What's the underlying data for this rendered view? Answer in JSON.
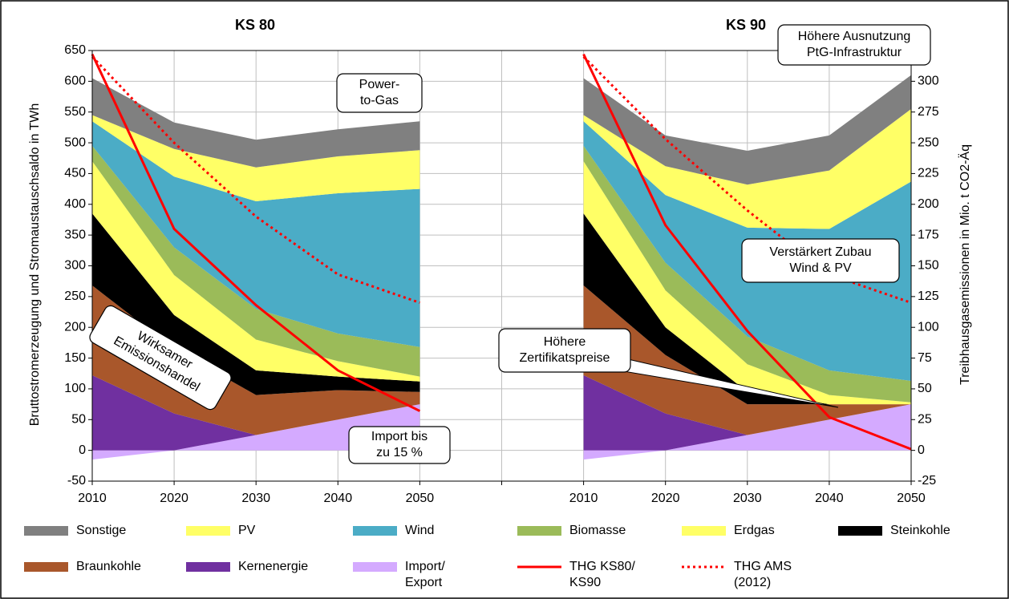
{
  "chart_data": {
    "type": "stacked_area",
    "titles": [
      "KS 80",
      "KS 90"
    ],
    "y_label": "Bruttostromerzeugung und Stromaustauschsaldo in TWh",
    "y2_label": "Treibhausgasemissionen in Mio. t CO2-Äq",
    "categories": [
      "2010",
      "2020",
      "2030",
      "2040",
      "2050",
      null,
      "2010",
      "2020",
      "2030",
      "2040",
      "2050"
    ],
    "ylim": [
      -50,
      650
    ],
    "yticks": [
      -50,
      0,
      50,
      100,
      150,
      200,
      250,
      300,
      350,
      400,
      450,
      500,
      550,
      600,
      650
    ],
    "y2lim": [
      -25,
      325
    ],
    "y2ticks": [
      -25,
      0,
      25,
      50,
      75,
      100,
      125,
      150,
      175,
      200,
      225,
      250,
      275,
      300
    ],
    "grid": true,
    "legend": "bottom",
    "series": [
      {
        "name": "Sonstige",
        "color": "#808080",
        "values": [
          60,
          43,
          45,
          44,
          47,
          null,
          60,
          50,
          55,
          57,
          55
        ]
      },
      {
        "name": "PV",
        "color": "#ffff66",
        "values": [
          10,
          45,
          55,
          60,
          63,
          null,
          10,
          47,
          70,
          95,
          118
        ]
      },
      {
        "name": "Wind",
        "color": "#4bacc6",
        "values": [
          40,
          115,
          175,
          228,
          257,
          null,
          40,
          110,
          177,
          230,
          324
        ]
      },
      {
        "name": "Biomasse",
        "color": "#9bbb59",
        "values": [
          25,
          45,
          50,
          45,
          48,
          null,
          25,
          45,
          45,
          40,
          35
        ]
      },
      {
        "name": "Erdgas",
        "color": "#ffff66",
        "values": [
          85,
          65,
          50,
          25,
          8,
          null,
          85,
          60,
          45,
          15,
          3
        ]
      },
      {
        "name": "Steinkohle",
        "color": "#000000",
        "values": [
          117,
          55,
          40,
          22,
          17,
          null,
          117,
          45,
          20,
          0,
          0
        ]
      },
      {
        "name": "Braunkohle",
        "color": "#a9572b",
        "values": [
          146,
          105,
          65,
          48,
          20,
          null,
          146,
          95,
          50,
          25,
          0
        ]
      },
      {
        "name": "Kernenergie",
        "color": "#7030a0",
        "values": [
          122,
          60,
          0,
          0,
          0,
          null,
          122,
          60,
          0,
          0,
          0
        ]
      },
      {
        "name": "Import/\nExport",
        "color": "#d4aaff",
        "values": [
          -15,
          0,
          25,
          50,
          75,
          null,
          -15,
          0,
          25,
          50,
          75
        ]
      },
      {
        "name": "THG KS80/\nKS90",
        "color": "#ff0000",
        "kind": "line",
        "axis": "y2",
        "style": "solid",
        "values": [
          322,
          180,
          118,
          65,
          32,
          null,
          322,
          183,
          97,
          27,
          1
        ]
      },
      {
        "name": "THG AMS\n(2012)",
        "color": "#ff0000",
        "kind": "line",
        "axis": "y2",
        "style": "dotted",
        "values": [
          320,
          250,
          190,
          143,
          120,
          null,
          320,
          253,
          195,
          143,
          120
        ]
      }
    ],
    "annotations": [
      "Power-\nto-Gas",
      "Wirksamer\nEmissionshandel",
      "Import bis\nzu 15 %",
      "Höhere Ausnutzung\nPtG-Infrastruktur",
      "Verstärkert Zubau\nWind & PV",
      "Höhere\nZertifikatspreise"
    ]
  }
}
